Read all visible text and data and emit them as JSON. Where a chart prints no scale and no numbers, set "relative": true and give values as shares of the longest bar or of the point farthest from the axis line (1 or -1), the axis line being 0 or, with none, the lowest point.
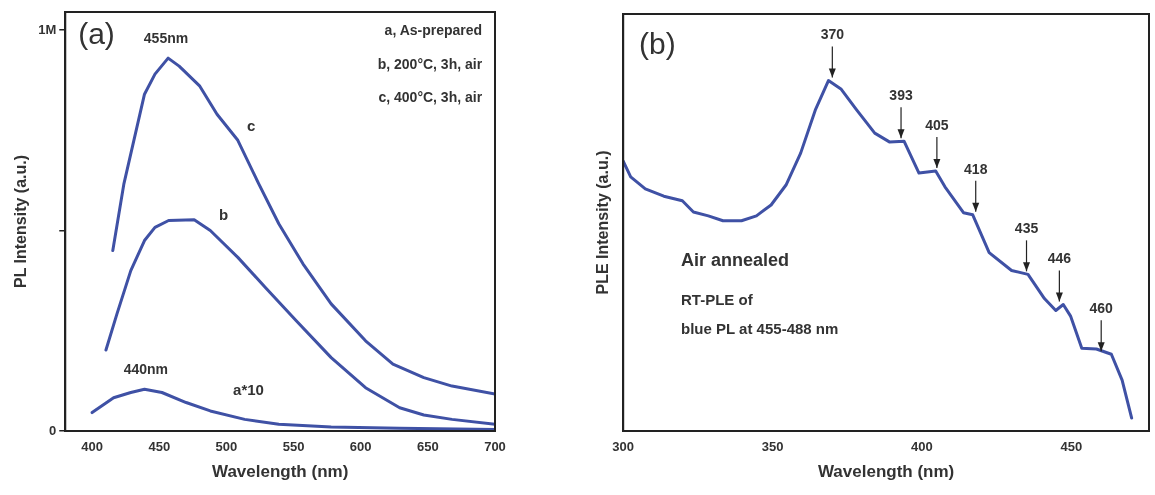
{
  "chart_data": [
    {
      "type": "line",
      "xlabel": "Wavelength (nm)",
      "ylabel": "PL Intensity (a.u.)",
      "marker": "none",
      "xlim": [
        380,
        700
      ],
      "xticks": [
        400,
        450,
        500,
        550,
        600,
        650,
        700
      ],
      "ylim": [
        0,
        1045000
      ],
      "yticks": [
        0,
        {
          "value": 500000,
          "label": null
        },
        {
          "value": 1000000,
          "label": "1M"
        }
      ],
      "series": [
        {
          "name": "c",
          "color": "#3f51a5",
          "x": [
            415.4,
            423.7,
            439,
            446.8,
            456.6,
            464.8,
            480.2,
            493,
            508.5,
            524,
            539,
            557,
            578,
            603.6,
            624,
            647,
            668,
            700
          ],
          "values": [
            450000,
            617000,
            840000,
            890000,
            930000,
            910000,
            860000,
            790000,
            725000,
            617000,
            517000,
            417000,
            317000,
            225000,
            167000,
            133000,
            112000,
            92000
          ]
        },
        {
          "name": "b",
          "color": "#3f51a5",
          "x": [
            410.3,
            418.5,
            428.8,
            439,
            446.8,
            457,
            476,
            488,
            508.5,
            529,
            552,
            578,
            603.6,
            629,
            647,
            668,
            700
          ],
          "values": [
            202000,
            292000,
            400000,
            475000,
            508000,
            525000,
            527000,
            500000,
            433000,
            358000,
            275000,
            183000,
            108000,
            58000,
            40000,
            29000,
            17000
          ]
        },
        {
          "name": "a*10",
          "color": "#3f51a5",
          "x": [
            400,
            416,
            428.8,
            439,
            452,
            470,
            488,
            513.6,
            539,
            578,
            629,
            700
          ],
          "values": [
            46000,
            83000,
            96000,
            104000,
            96000,
            71000,
            50000,
            29000,
            17000,
            10000,
            7000,
            4000
          ]
        }
      ],
      "annotations": [
        "(a)",
        "a, As-prepared",
        "b, 200°C, 3h, air",
        "c, 400°C, 3h, air",
        {
          "text": "455nm",
          "x": 455,
          "y": 930000
        },
        {
          "text": "440nm",
          "x": 440,
          "y": 104000
        }
      ]
    },
    {
      "type": "line",
      "xlabel": "Wavelength (nm)",
      "ylabel": "PLE Intensity (a.u.)",
      "marker": "none",
      "relative": true,
      "xlim": [
        300,
        476
      ],
      "xticks": [
        300,
        350,
        400,
        450
      ],
      "series": [
        {
          "color": "#3f51a5",
          "x": [
            300,
            302.5,
            307.4,
            313.6,
            319.8,
            323.5,
            328.5,
            333.4,
            339.6,
            344.6,
            349.5,
            354.5,
            359.4,
            364.4,
            368.7,
            373,
            378,
            384.2,
            389.1,
            394,
            399,
            404.6,
            407.7,
            413.9,
            417,
            422.5,
            430,
            435.5,
            441,
            444.8,
            447.3,
            449.8,
            453.5,
            458.4,
            463.4,
            467,
            470.2
          ],
          "values": [
            0.77,
            0.725,
            0.691,
            0.67,
            0.657,
            0.625,
            0.614,
            0.6,
            0.6,
            0.614,
            0.645,
            0.702,
            0.793,
            0.918,
            1,
            0.975,
            0.918,
            0.85,
            0.825,
            0.827,
            0.736,
            0.742,
            0.697,
            0.623,
            0.617,
            0.509,
            0.458,
            0.447,
            0.378,
            0.344,
            0.361,
            0.327,
            0.236,
            0.234,
            0.219,
            0.145,
            0.037
          ]
        }
      ],
      "annotations": [
        "(b)",
        "Air annealed",
        "RT-PLE of",
        "blue PL at 455-488 nm",
        {
          "text": "370",
          "x": 370,
          "y": 1
        },
        {
          "text": "393",
          "x": 393,
          "y": 0.827
        },
        {
          "text": "405",
          "x": 405,
          "y": 0.742
        },
        {
          "text": "418",
          "x": 418,
          "y": 0.617
        },
        {
          "text": "435",
          "x": 435,
          "y": 0.447
        },
        {
          "text": "446",
          "x": 446,
          "y": 0.361
        },
        {
          "text": "460",
          "x": 460,
          "y": 0.219
        }
      ]
    }
  ]
}
